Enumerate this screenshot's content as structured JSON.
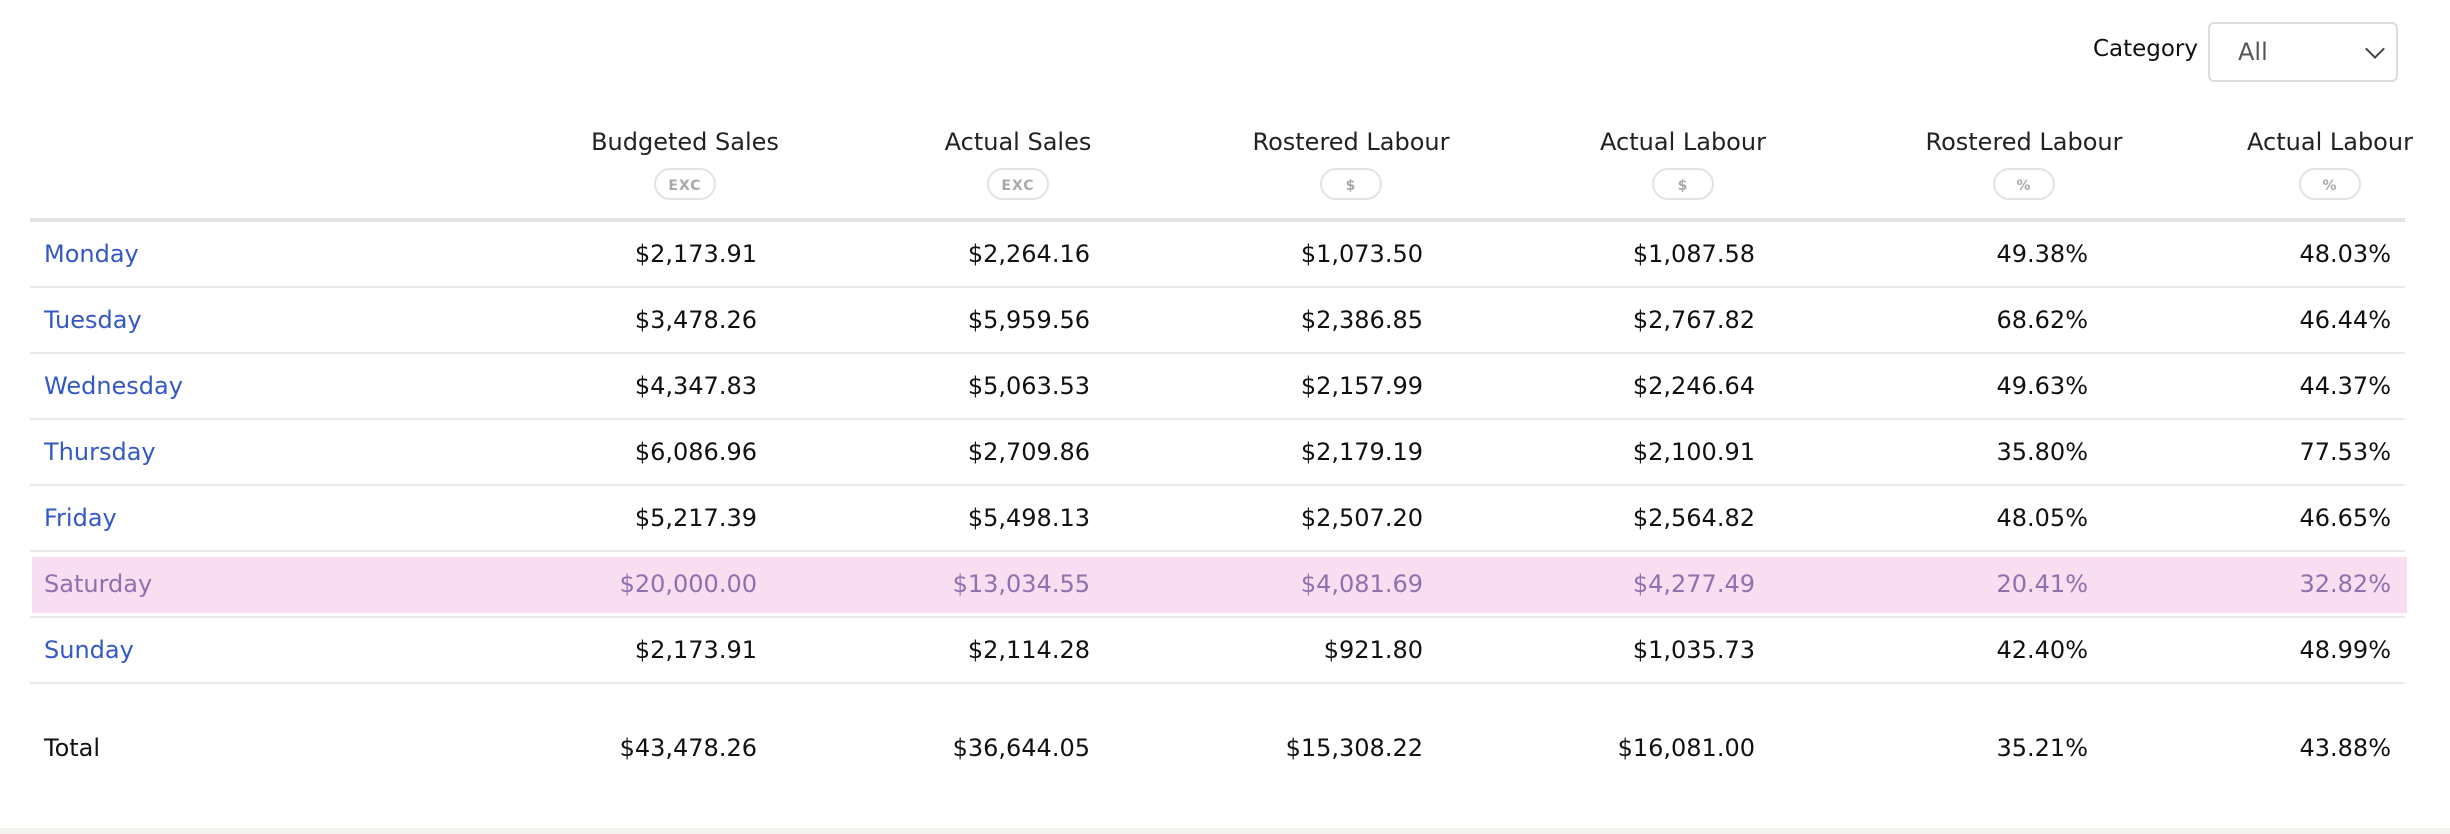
{
  "filter": {
    "label": "Category",
    "value": "All"
  },
  "columns": [
    {
      "label": "Budgeted Sales",
      "badge": "EXC"
    },
    {
      "label": "Actual Sales",
      "badge": "EXC"
    },
    {
      "label": "Rostered Labour",
      "badge": "$"
    },
    {
      "label": "Actual Labour",
      "badge": "$"
    },
    {
      "label": "Rostered Labour",
      "badge": "%"
    },
    {
      "label": "Actual Labour",
      "badge": "%"
    }
  ],
  "rows": [
    {
      "day": "Monday",
      "values": [
        "$2,173.91",
        "$2,264.16",
        "$1,073.50",
        "$1,087.58",
        "49.38%",
        "48.03%"
      ]
    },
    {
      "day": "Tuesday",
      "values": [
        "$3,478.26",
        "$5,959.56",
        "$2,386.85",
        "$2,767.82",
        "68.62%",
        "46.44%"
      ]
    },
    {
      "day": "Wednesday",
      "values": [
        "$4,347.83",
        "$5,063.53",
        "$2,157.99",
        "$2,246.64",
        "49.63%",
        "44.37%"
      ]
    },
    {
      "day": "Thursday",
      "values": [
        "$6,086.96",
        "$2,709.86",
        "$2,179.19",
        "$2,100.91",
        "35.80%",
        "77.53%"
      ]
    },
    {
      "day": "Friday",
      "values": [
        "$5,217.39",
        "$5,498.13",
        "$2,507.20",
        "$2,564.82",
        "48.05%",
        "46.65%"
      ]
    },
    {
      "day": "Saturday",
      "values": [
        "$20,000.00",
        "$13,034.55",
        "$4,081.69",
        "$4,277.49",
        "20.41%",
        "32.82%"
      ],
      "highlighted": true
    },
    {
      "day": "Sunday",
      "values": [
        "$2,173.91",
        "$2,114.28",
        "$921.80",
        "$1,035.73",
        "42.40%",
        "48.99%"
      ]
    }
  ],
  "total": {
    "label": "Total",
    "values": [
      "$43,478.26",
      "$36,644.05",
      "$15,308.22",
      "$16,081.00",
      "35.21%",
      "43.88%"
    ]
  },
  "colors": {
    "day_link": "#3458c4",
    "highlight_bg": "#f9ddf1",
    "highlight_text": "#9070ad"
  }
}
